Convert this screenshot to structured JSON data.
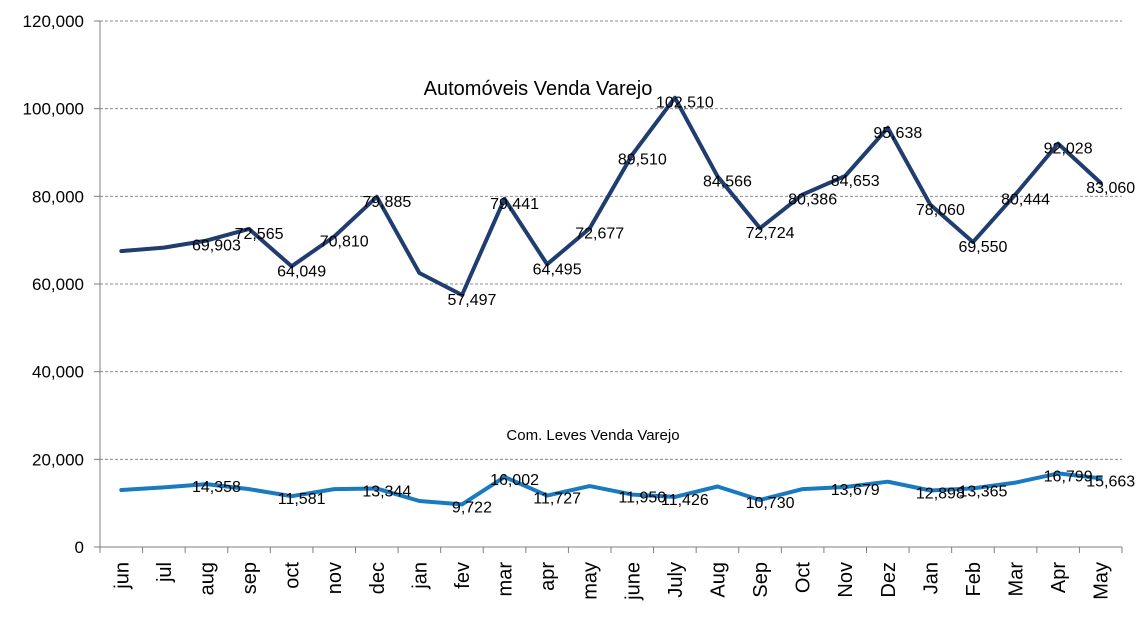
{
  "chart_data": {
    "type": "line",
    "categories": [
      "jun",
      "jul",
      "aug",
      "sep",
      "oct",
      "nov",
      "dec",
      "jan",
      "fev",
      "mar",
      "apr",
      "may",
      "june",
      "July",
      "Aug",
      "Sep",
      "Oct",
      "Nov",
      "Dez",
      "Jan",
      "Feb",
      "Mar",
      "Apr",
      "May"
    ],
    "ylim": [
      0,
      120000
    ],
    "yticks": [
      "0",
      "20,000",
      "40,000",
      "60,000",
      "80,000",
      "100,000",
      "120,000"
    ],
    "grid": true,
    "series": [
      {
        "name": "Automóveis Venda Varejo",
        "color": "#1f3d6e",
        "values": [
          67500,
          68300,
          69903,
          72565,
          64049,
          70810,
          79885,
          62500,
          57497,
          79441,
          64495,
          72677,
          89510,
          102510,
          84566,
          72724,
          80386,
          84653,
          95638,
          78060,
          69550,
          80444,
          92028,
          83060
        ],
        "labels": [
          "",
          "",
          "69,903",
          "72,565",
          "64,049",
          "70,810",
          "79,885",
          "",
          "57,497",
          "79,441",
          "64,495",
          "72,677",
          "89,510",
          "102,510",
          "84,566",
          "72,724",
          "80,386",
          "84,653",
          "95,638",
          "78,060",
          "69,550",
          "80,444",
          "92,028",
          "83,060"
        ]
      },
      {
        "name": "Com. Leves Venda Varejo",
        "color": "#1a7abf",
        "values": [
          13000,
          13600,
          14358,
          13200,
          11581,
          13200,
          13344,
          10500,
          9722,
          16002,
          11727,
          13900,
          11950,
          11426,
          13800,
          10730,
          13200,
          13679,
          14900,
          12898,
          13365,
          14700,
          16799,
          15663
        ],
        "labels": [
          "",
          "",
          "14,358",
          "",
          "11,581",
          "",
          "13,344",
          "",
          "9,722",
          "16,002",
          "11,727",
          "",
          "11,950",
          "11,426",
          "",
          "10,730",
          "",
          "13,679",
          "",
          "12,898",
          "13,365",
          "",
          "16,799",
          "15,663"
        ]
      }
    ]
  }
}
